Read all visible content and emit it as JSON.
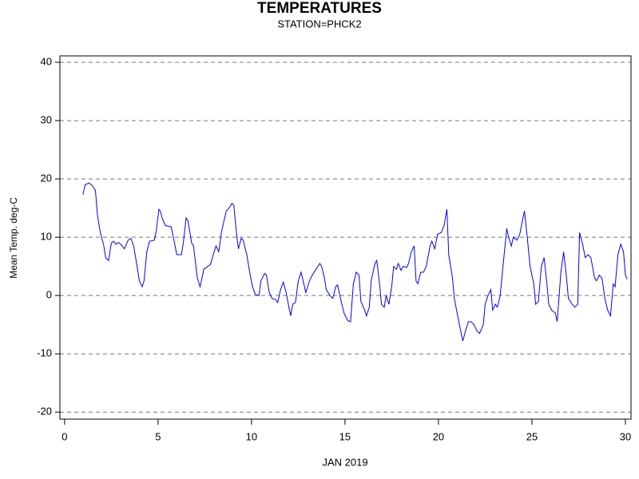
{
  "chart_data": {
    "type": "line",
    "title": "TEMPERATURES",
    "subtitle": "STATION=PHCK2",
    "x_label": "JAN 2019",
    "y_label": "Mean Temp. deg-C",
    "x": [
      0.98,
      1.1,
      1.3,
      1.5,
      1.65,
      1.75,
      1.9,
      2.1,
      2.2,
      2.35,
      2.5,
      2.62,
      2.75,
      2.88,
      3.0,
      3.2,
      3.4,
      3.55,
      3.7,
      3.85,
      4.0,
      4.15,
      4.25,
      4.4,
      4.55,
      4.8,
      4.9,
      5.05,
      5.12,
      5.25,
      5.4,
      5.7,
      5.85,
      6.0,
      6.25,
      6.35,
      6.5,
      6.6,
      6.8,
      6.9,
      7.1,
      7.25,
      7.45,
      7.65,
      7.8,
      8.0,
      8.1,
      8.25,
      8.4,
      8.65,
      8.8,
      8.95,
      9.05,
      9.2,
      9.3,
      9.45,
      9.55,
      9.75,
      9.9,
      10.05,
      10.2,
      10.4,
      10.5,
      10.7,
      10.8,
      10.95,
      11.1,
      11.3,
      11.4,
      11.55,
      11.7,
      11.85,
      12.0,
      12.1,
      12.2,
      12.35,
      12.5,
      12.65,
      12.8,
      12.9,
      13.1,
      13.25,
      13.45,
      13.65,
      13.75,
      13.9,
      14.0,
      14.2,
      14.35,
      14.5,
      14.6,
      14.8,
      14.95,
      15.15,
      15.3,
      15.45,
      15.6,
      15.75,
      15.85,
      16.05,
      16.15,
      16.3,
      16.4,
      16.6,
      16.7,
      16.85,
      16.95,
      17.1,
      17.2,
      17.35,
      17.5,
      17.6,
      17.75,
      17.85,
      18.0,
      18.1,
      18.3,
      18.4,
      18.55,
      18.7,
      18.8,
      18.9,
      19.05,
      19.2,
      19.35,
      19.55,
      19.65,
      19.8,
      19.95,
      20.15,
      20.3,
      20.45,
      20.55,
      20.75,
      20.85,
      21.0,
      21.15,
      21.3,
      21.45,
      21.6,
      21.75,
      21.9,
      22.05,
      22.2,
      22.4,
      22.5,
      22.65,
      22.8,
      22.9,
      23.05,
      23.15,
      23.3,
      23.45,
      23.65,
      23.75,
      23.9,
      24.0,
      24.2,
      24.35,
      24.5,
      24.6,
      24.75,
      24.9,
      25.1,
      25.2,
      25.35,
      25.5,
      25.65,
      25.8,
      25.9,
      26.05,
      26.25,
      26.35,
      26.55,
      26.7,
      26.85,
      26.95,
      27.15,
      27.3,
      27.45,
      27.55,
      27.7,
      27.85,
      28.0,
      28.15,
      28.35,
      28.45,
      28.6,
      28.75,
      28.9,
      29.05,
      29.2,
      29.35,
      29.45,
      29.6,
      29.75,
      29.9,
      30.0,
      30.1
    ],
    "series": [
      {
        "name": "Mean Temp",
        "color": "#0000ff",
        "values": [
          17.3,
          19,
          19.3,
          18.8,
          18,
          14,
          11,
          8.5,
          6.5,
          6,
          9,
          9.3,
          8.8,
          9.1,
          8.8,
          8,
          9.5,
          9.8,
          8.5,
          5.5,
          2.5,
          1.5,
          2.5,
          7.5,
          9.3,
          9.5,
          11,
          14.8,
          14.5,
          13,
          12,
          11.8,
          9.5,
          7,
          7,
          9,
          13.3,
          12.8,
          9,
          8.5,
          3,
          1.5,
          4.5,
          5,
          5.3,
          7.5,
          8.5,
          7.5,
          11,
          14.5,
          15,
          15.8,
          15.5,
          10.5,
          8,
          9.8,
          9.5,
          7,
          4,
          1.5,
          0.2,
          0,
          2.5,
          3.8,
          3.5,
          0.5,
          -0.5,
          -0.7,
          -1.2,
          1,
          2.3,
          0.5,
          -2,
          -3.5,
          -1.5,
          -1.2,
          2.5,
          4,
          2,
          0.5,
          2.5,
          3.5,
          4.5,
          5.5,
          5,
          3,
          1,
          0,
          -0.5,
          1.5,
          1.8,
          -1,
          -3,
          -4.3,
          -4.5,
          2,
          4,
          3.5,
          -1,
          -2.5,
          -3.5,
          -2,
          2.5,
          5.5,
          6,
          2,
          -1.5,
          -2,
          0,
          -1.5,
          1.5,
          5,
          4.5,
          5.5,
          4.3,
          5,
          4.8,
          5.5,
          7.5,
          8.5,
          2.5,
          2,
          4,
          4,
          5,
          8.5,
          9.3,
          8,
          10.5,
          10.8,
          12,
          14.8,
          7,
          3,
          -0.5,
          -3,
          -5.5,
          -7.8,
          -6,
          -4.5,
          -4.5,
          -5,
          -6,
          -6.5,
          -5,
          -1.5,
          0,
          1,
          -2.5,
          -1.5,
          -2,
          0,
          5,
          11.5,
          10,
          8.5,
          10,
          9.5,
          10.5,
          13,
          14.5,
          10,
          5,
          2,
          -1.5,
          -1,
          5,
          6.5,
          2,
          -1.5,
          -2.5,
          -3,
          -4.5,
          4,
          7.5,
          3,
          -0.5,
          -1.5,
          -2,
          -1.5,
          10.8,
          9,
          6.5,
          7,
          6.5,
          3,
          2.5,
          3.5,
          3,
          -0.5,
          -2.5,
          -3.5,
          2,
          1.5,
          7,
          8.8,
          7.5,
          3.5,
          2.8
        ]
      }
    ],
    "xlim": [
      -0.25,
      30.3
    ],
    "ylim": [
      -21.2,
      41.1
    ],
    "xticks": [
      0,
      5,
      10,
      15,
      20,
      25,
      30
    ],
    "yticks": [
      -20,
      -10,
      0,
      10,
      20,
      30,
      40
    ],
    "grid": true
  }
}
